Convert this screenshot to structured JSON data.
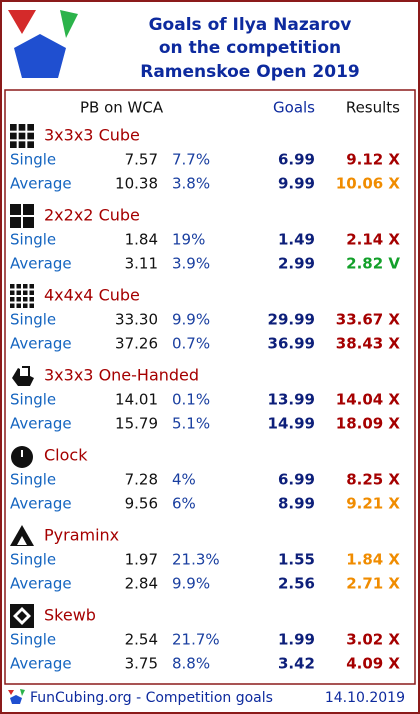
{
  "header": {
    "title_lines": [
      "Goals of Ilya Nazarov",
      "on the competition",
      "Ramenskoe Open 2019"
    ]
  },
  "columns": {
    "pb": "PB on WCA",
    "goals": "Goals",
    "results": "Results"
  },
  "events": [
    {
      "name": "3x3x3 Cube",
      "rows": [
        {
          "label": "Single",
          "pb": "7.57",
          "percent": "7.7%",
          "goal": "6.99",
          "result": "9.12 X",
          "color": "#a50000"
        },
        {
          "label": "Average",
          "pb": "10.38",
          "percent": "3.8%",
          "goal": "9.99",
          "result": "10.06 X",
          "color": "#f08c00"
        }
      ]
    },
    {
      "name": "2x2x2 Cube",
      "rows": [
        {
          "label": "Single",
          "pb": "1.84",
          "percent": "19%",
          "goal": "1.49",
          "result": "2.14 X",
          "color": "#a50000"
        },
        {
          "label": "Average",
          "pb": "3.11",
          "percent": "3.9%",
          "goal": "2.99",
          "result": "2.82 V",
          "color": "#13a02a"
        }
      ]
    },
    {
      "name": "4x4x4 Cube",
      "rows": [
        {
          "label": "Single",
          "pb": "33.30",
          "percent": "9.9%",
          "goal": "29.99",
          "result": "33.67 X",
          "color": "#a50000"
        },
        {
          "label": "Average",
          "pb": "37.26",
          "percent": "0.7%",
          "goal": "36.99",
          "result": "38.43 X",
          "color": "#a50000"
        }
      ]
    },
    {
      "name": "3x3x3 One-Handed",
      "rows": [
        {
          "label": "Single",
          "pb": "14.01",
          "percent": "0.1%",
          "goal": "13.99",
          "result": "14.04 X",
          "color": "#a50000"
        },
        {
          "label": "Average",
          "pb": "15.79",
          "percent": "5.1%",
          "goal": "14.99",
          "result": "18.09 X",
          "color": "#a50000"
        }
      ]
    },
    {
      "name": "Clock",
      "rows": [
        {
          "label": "Single",
          "pb": "7.28",
          "percent": "4%",
          "goal": "6.99",
          "result": "8.25 X",
          "color": "#a50000"
        },
        {
          "label": "Average",
          "pb": "9.56",
          "percent": "6%",
          "goal": "8.99",
          "result": "9.21 X",
          "color": "#f08c00"
        }
      ]
    },
    {
      "name": "Pyraminx",
      "rows": [
        {
          "label": "Single",
          "pb": "1.97",
          "percent": "21.3%",
          "goal": "1.55",
          "result": "1.84 X",
          "color": "#f08c00"
        },
        {
          "label": "Average",
          "pb": "2.84",
          "percent": "9.9%",
          "goal": "2.56",
          "result": "2.71 X",
          "color": "#f08c00"
        }
      ]
    },
    {
      "name": "Skewb",
      "rows": [
        {
          "label": "Single",
          "pb": "2.54",
          "percent": "21.7%",
          "goal": "1.99",
          "result": "3.02 X",
          "color": "#a50000"
        },
        {
          "label": "Average",
          "pb": "3.75",
          "percent": "8.8%",
          "goal": "3.42",
          "result": "4.09 X",
          "color": "#a50000"
        }
      ]
    }
  ],
  "footer": {
    "site": "FunCubing.org - Competition goals",
    "date": "14.10.2019"
  }
}
